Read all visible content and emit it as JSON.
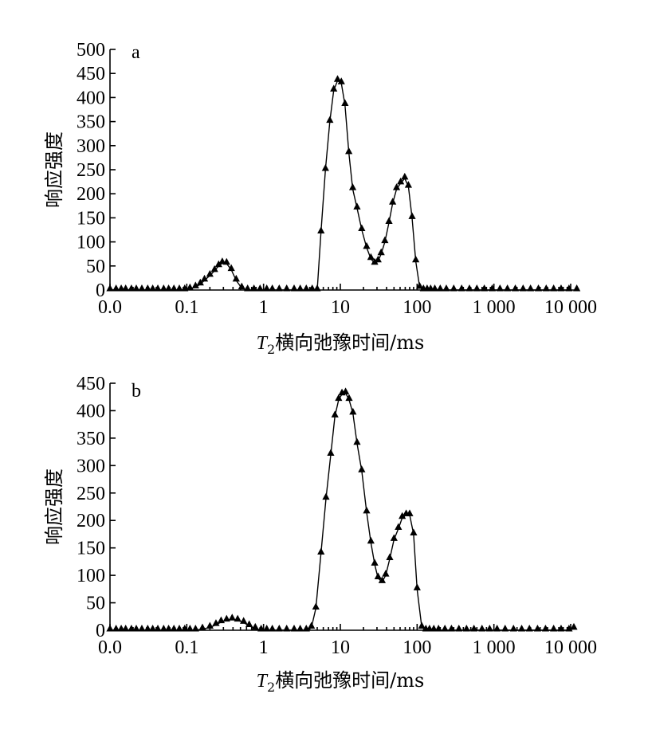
{
  "chart_data": [
    {
      "type": "line",
      "panel_label": "a",
      "xlabel_symbol": "T",
      "xlabel_subscript": "2",
      "xlabel_text": "横向弛豫时间/ms",
      "ylabel": "响应强度",
      "x_scale": "log",
      "x_ticks": [
        "0.0",
        "0.1",
        "1",
        "10",
        "100",
        "1 000",
        "10 000"
      ],
      "y_ticks": [
        "0",
        "50",
        "100",
        "150",
        "200",
        "250",
        "300",
        "350",
        "400",
        "450",
        "500"
      ],
      "ylim": [
        0,
        500
      ],
      "legend": "none",
      "grid": false,
      "series": [
        {
          "marker": "triangle",
          "x": [
            0.01,
            0.012,
            0.014,
            0.016,
            0.019,
            0.022,
            0.026,
            0.031,
            0.036,
            0.042,
            0.05,
            0.058,
            0.068,
            0.08,
            0.094,
            0.11,
            0.13,
            0.15,
            0.17,
            0.2,
            0.23,
            0.26,
            0.29,
            0.33,
            0.38,
            0.44,
            0.52,
            0.62,
            0.75,
            0.9,
            1.1,
            1.3,
            1.6,
            2.0,
            2.5,
            3.0,
            3.6,
            4.3,
            5.0,
            5.6,
            6.4,
            7.3,
            8.2,
            9.2,
            10.3,
            11.5,
            12.9,
            14.5,
            16.5,
            19,
            22,
            25,
            28,
            31,
            34,
            38,
            43,
            48,
            54,
            61,
            69,
            77,
            86,
            96,
            108,
            121,
            135,
            150,
            170,
            200,
            240,
            300,
            380,
            480,
            600,
            750,
            950,
            1200,
            1500,
            1900,
            2400,
            3000,
            3800,
            4800,
            6000,
            7500,
            9500,
            12000
          ],
          "y": [
            0,
            0,
            0,
            0,
            0,
            0,
            0,
            0,
            0,
            0,
            0,
            0,
            0,
            0,
            0,
            2,
            6,
            12,
            20,
            30,
            40,
            50,
            56,
            55,
            42,
            20,
            4,
            0,
            0,
            0,
            0,
            0,
            0,
            0,
            0,
            0,
            0,
            0,
            0,
            120,
            250,
            350,
            415,
            435,
            430,
            385,
            285,
            210,
            170,
            125,
            88,
            65,
            55,
            60,
            75,
            100,
            140,
            180,
            210,
            222,
            232,
            215,
            150,
            60,
            5,
            0,
            0,
            0,
            0,
            0,
            0,
            0,
            0,
            0,
            0,
            0,
            0,
            0,
            0,
            0,
            0,
            0,
            0,
            0,
            0,
            0,
            0,
            0
          ]
        }
      ]
    },
    {
      "type": "line",
      "panel_label": "b",
      "xlabel_symbol": "T",
      "xlabel_subscript": "2",
      "xlabel_text": "横向弛豫时间/ms",
      "ylabel": "响应强度",
      "x_scale": "log",
      "x_ticks": [
        "0.0",
        "0.1",
        "1",
        "10",
        "100",
        "1 000",
        "10 000"
      ],
      "y_ticks": [
        "0",
        "50",
        "100",
        "150",
        "200",
        "250",
        "300",
        "350",
        "400",
        "450"
      ],
      "ylim": [
        0,
        450
      ],
      "legend": "none",
      "grid": false,
      "series": [
        {
          "marker": "triangle",
          "x": [
            0.01,
            0.012,
            0.014,
            0.016,
            0.019,
            0.022,
            0.026,
            0.031,
            0.036,
            0.042,
            0.05,
            0.058,
            0.068,
            0.08,
            0.094,
            0.11,
            0.13,
            0.16,
            0.2,
            0.24,
            0.28,
            0.33,
            0.39,
            0.46,
            0.55,
            0.65,
            0.78,
            0.93,
            1.1,
            1.3,
            1.6,
            2.0,
            2.5,
            3.0,
            3.6,
            4.2,
            4.8,
            5.6,
            6.5,
            7.5,
            8.5,
            9.5,
            10.5,
            11.7,
            13,
            14.6,
            16.5,
            19,
            22,
            25,
            28,
            31,
            35,
            39,
            44,
            50,
            57,
            64,
            72,
            80,
            90,
            100,
            115,
            130,
            145,
            165,
            190,
            230,
            280,
            350,
            440,
            550,
            700,
            880,
            1100,
            1400,
            1800,
            2300,
            2900,
            3700,
            4700,
            6000,
            7500,
            9500,
            11000
          ],
          "y": [
            0,
            0,
            0,
            0,
            0,
            0,
            0,
            0,
            0,
            0,
            0,
            0,
            0,
            0,
            0,
            0,
            0,
            2,
            5,
            10,
            15,
            18,
            20,
            18,
            14,
            8,
            3,
            0,
            0,
            0,
            0,
            0,
            0,
            0,
            0,
            5,
            40,
            140,
            240,
            320,
            390,
            420,
            430,
            432,
            420,
            395,
            340,
            290,
            215,
            160,
            120,
            95,
            88,
            100,
            130,
            165,
            185,
            205,
            210,
            210,
            175,
            75,
            5,
            0,
            0,
            0,
            0,
            0,
            0,
            0,
            0,
            0,
            0,
            0,
            0,
            0,
            0,
            0,
            0,
            0,
            0,
            0,
            0,
            0,
            3
          ]
        }
      ]
    }
  ]
}
